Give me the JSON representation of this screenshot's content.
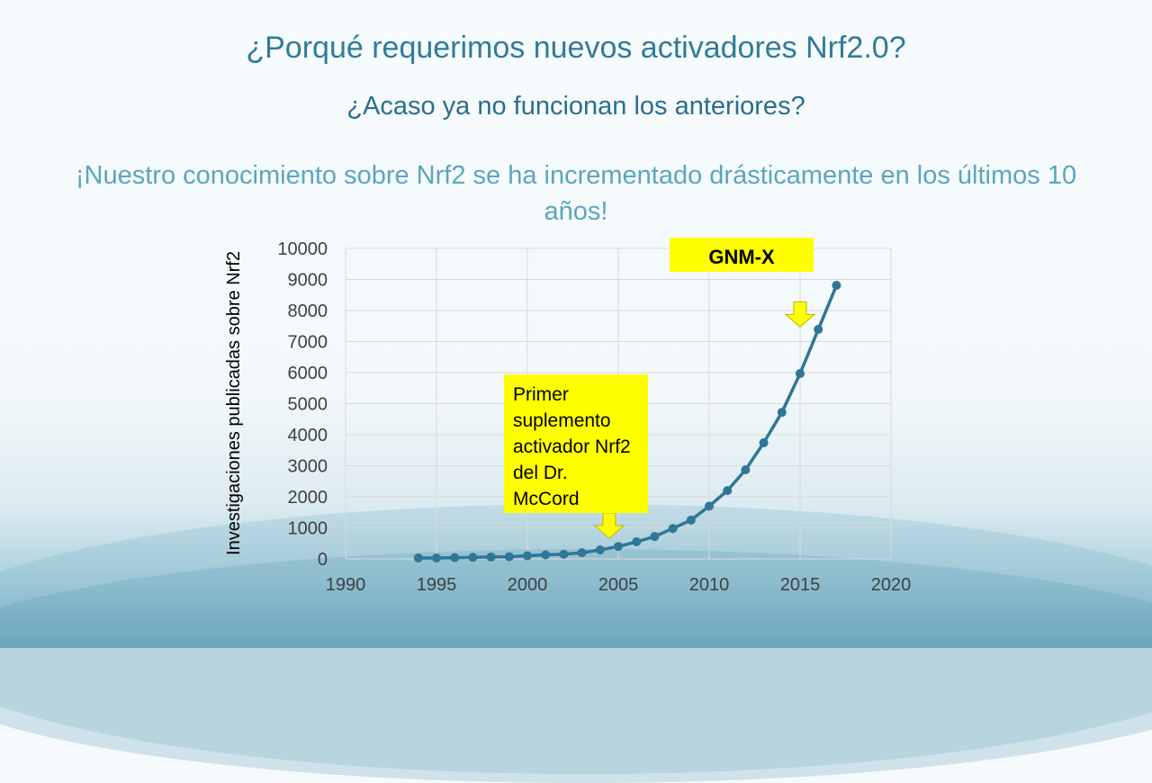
{
  "slide": {
    "title": "¿Porqué requerimos nuevos activadores Nrf2.0?",
    "subtitle": "¿Acaso ya no funcionan los anteriores?",
    "statement": "¡Nuestro conocimiento sobre Nrf2 se ha incrementado drásticamente en los últimos 10 años!"
  },
  "annotations": {
    "mccord": "Primer suplemento activador Nrf2 del Dr. McCord",
    "gnmx": "GNM-X"
  },
  "chart_data": {
    "type": "line",
    "title": "",
    "xlabel": "",
    "ylabel": "Investigaciones publicadas sobre Nrf2",
    "xlim": [
      1990,
      2020
    ],
    "ylim": [
      0,
      10000
    ],
    "xticks": [
      1990,
      1995,
      2000,
      2005,
      2010,
      2015,
      2020
    ],
    "yticks": [
      0,
      1000,
      2000,
      3000,
      4000,
      5000,
      6000,
      7000,
      8000,
      9000,
      10000
    ],
    "grid": true,
    "color": "#2e7796",
    "x": [
      1994,
      1995,
      1996,
      1997,
      1998,
      1999,
      2000,
      2001,
      2002,
      2003,
      2004,
      2005,
      2006,
      2007,
      2008,
      2009,
      2010,
      2011,
      2012,
      2013,
      2014,
      2015,
      2016,
      2017
    ],
    "values": [
      30,
      30,
      40,
      50,
      60,
      70,
      100,
      130,
      150,
      200,
      290,
      400,
      550,
      720,
      980,
      1250,
      1700,
      2200,
      2870,
      3740,
      4720,
      5970,
      7390,
      8810
    ],
    "arrows": [
      {
        "label": "mccord",
        "x": 2004.5,
        "y": 900
      },
      {
        "label": "gnmx",
        "x": 2015,
        "y": 7700
      }
    ]
  }
}
